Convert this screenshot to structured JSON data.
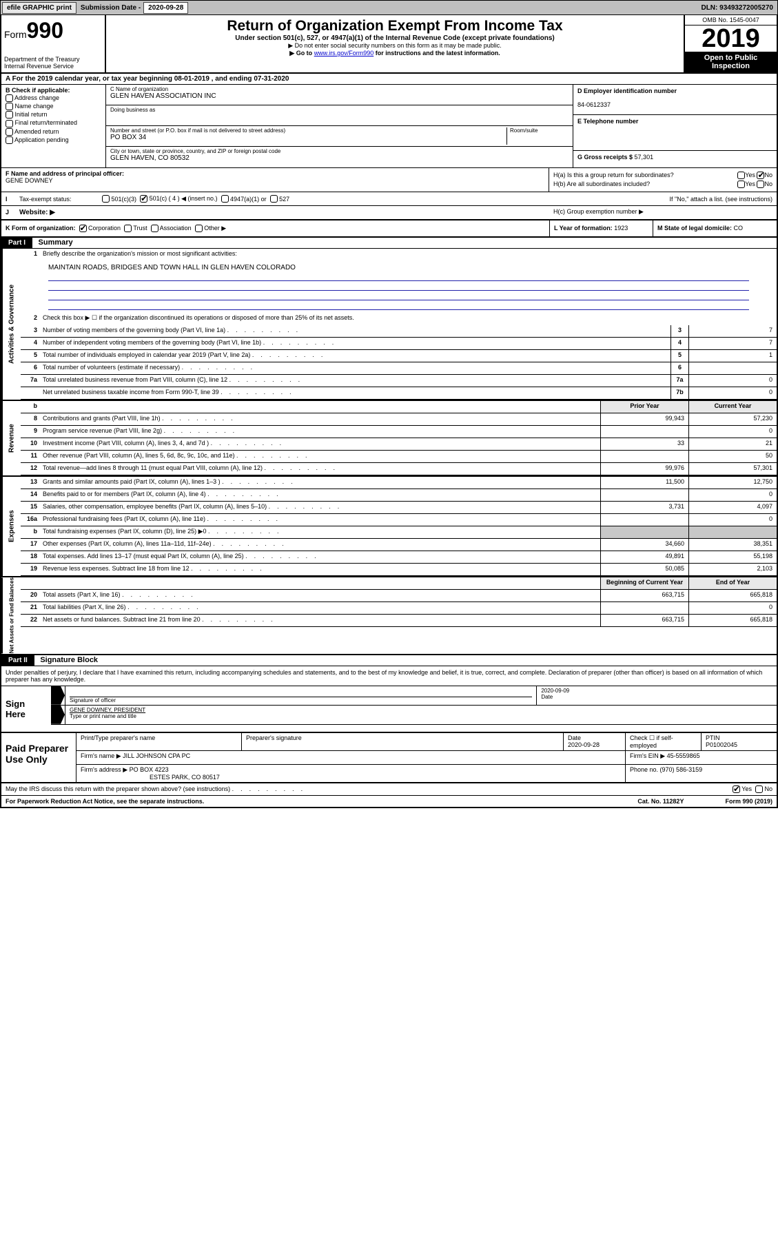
{
  "topbar": {
    "efile": "efile GRAPHIC print",
    "sub_label": "Submission Date - ",
    "sub_date": "2020-09-28",
    "dln": "DLN: 93493272005270"
  },
  "header": {
    "form_prefix": "Form",
    "form_num": "990",
    "dept": "Department of the Treasury\nInternal Revenue Service",
    "title": "Return of Organization Exempt From Income Tax",
    "line1": "Under section 501(c), 527, or 4947(a)(1) of the Internal Revenue Code (except private foundations)",
    "line2": "▶ Do not enter social security numbers on this form as it may be made public.",
    "line3_pre": "▶ Go to ",
    "line3_link": "www.irs.gov/Form990",
    "line3_post": " for instructions and the latest information.",
    "omb": "OMB No. 1545-0047",
    "year": "2019",
    "open": "Open to Public Inspection"
  },
  "period": "A For the 2019 calendar year, or tax year beginning 08-01-2019    , and ending 07-31-2020",
  "boxB": {
    "label": "B Check if applicable:",
    "opts": [
      "Address change",
      "Name change",
      "Initial return",
      "Final return/terminated",
      "Amended return",
      "Application pending"
    ]
  },
  "boxC": {
    "name_lbl": "C Name of organization",
    "name": "GLEN HAVEN ASSOCIATION INC",
    "dba_lbl": "Doing business as",
    "addr_lbl": "Number and street (or P.O. box if mail is not delivered to street address)",
    "room_lbl": "Room/suite",
    "addr": "PO BOX 34",
    "city_lbl": "City or town, state or province, country, and ZIP or foreign postal code",
    "city": "GLEN HAVEN, CO  80532"
  },
  "boxD": {
    "lbl": "D Employer identification number",
    "val": "84-0612337"
  },
  "boxE": {
    "lbl": "E Telephone number"
  },
  "boxG": {
    "lbl": "G Gross receipts $ ",
    "val": "57,301"
  },
  "boxF": {
    "lbl": "F  Name and address of principal officer:",
    "val": "GENE DOWNEY"
  },
  "boxH": {
    "a": "H(a)  Is this a group return for subordinates?",
    "b": "H(b)  Are all subordinates included?",
    "b2": "If \"No,\" attach a list. (see instructions)",
    "c": "H(c)  Group exemption number ▶"
  },
  "taxrow": {
    "i": "I",
    "lbl": "Tax-exempt status:",
    "o1": "501(c)(3)",
    "o2": "501(c) ( 4 ) ◀ (insert no.)",
    "o3": "4947(a)(1) or",
    "o4": "527"
  },
  "webrow": {
    "j": "J",
    "lbl": "Website: ▶"
  },
  "klm": {
    "k": "K Form of organization:",
    "k_opts": [
      "Corporation",
      "Trust",
      "Association",
      "Other ▶"
    ],
    "l": "L Year of formation: ",
    "l_val": "1923",
    "m": "M State of legal domicile: ",
    "m_val": "CO"
  },
  "part1": {
    "tag": "Part I",
    "title": "Summary"
  },
  "summary": {
    "l1": "Briefly describe the organization's mission or most significant activities:",
    "mission": "MAINTAIN ROADS, BRIDGES AND TOWN HALL IN GLEN HAVEN COLORADO",
    "l2": "Check this box ▶ ☐  if the organization discontinued its operations or disposed of more than 25% of its net assets.",
    "rows_a": [
      {
        "n": "3",
        "d": "Number of voting members of the governing body (Part VI, line 1a)",
        "box": "3",
        "v": "7"
      },
      {
        "n": "4",
        "d": "Number of independent voting members of the governing body (Part VI, line 1b)",
        "box": "4",
        "v": "7"
      },
      {
        "n": "5",
        "d": "Total number of individuals employed in calendar year 2019 (Part V, line 2a)",
        "box": "5",
        "v": "1"
      },
      {
        "n": "6",
        "d": "Total number of volunteers (estimate if necessary)",
        "box": "6",
        "v": ""
      },
      {
        "n": "7a",
        "d": "Total unrelated business revenue from Part VIII, column (C), line 12",
        "box": "7a",
        "v": "0"
      },
      {
        "n": "",
        "d": "Net unrelated business taxable income from Form 990-T, line 39",
        "box": "7b",
        "v": "0"
      }
    ],
    "hdr_b": "b",
    "hdr_prior": "Prior Year",
    "hdr_curr": "Current Year",
    "rows_rev": [
      {
        "n": "8",
        "d": "Contributions and grants (Part VIII, line 1h)",
        "p": "99,943",
        "c": "57,230"
      },
      {
        "n": "9",
        "d": "Program service revenue (Part VIII, line 2g)",
        "p": "",
        "c": "0"
      },
      {
        "n": "10",
        "d": "Investment income (Part VIII, column (A), lines 3, 4, and 7d )",
        "p": "33",
        "c": "21"
      },
      {
        "n": "11",
        "d": "Other revenue (Part VIII, column (A), lines 5, 6d, 8c, 9c, 10c, and 11e)",
        "p": "",
        "c": "50"
      },
      {
        "n": "12",
        "d": "Total revenue—add lines 8 through 11 (must equal Part VIII, column (A), line 12)",
        "p": "99,976",
        "c": "57,301"
      }
    ],
    "rows_exp": [
      {
        "n": "13",
        "d": "Grants and similar amounts paid (Part IX, column (A), lines 1–3 )",
        "p": "11,500",
        "c": "12,750"
      },
      {
        "n": "14",
        "d": "Benefits paid to or for members (Part IX, column (A), line 4)",
        "p": "",
        "c": "0"
      },
      {
        "n": "15",
        "d": "Salaries, other compensation, employee benefits (Part IX, column (A), lines 5–10)",
        "p": "3,731",
        "c": "4,097"
      },
      {
        "n": "16a",
        "d": "Professional fundraising fees (Part IX, column (A), line 11e)",
        "p": "",
        "c": "0"
      },
      {
        "n": "b",
        "d": "Total fundraising expenses (Part IX, column (D), line 25) ▶0",
        "p": "shade",
        "c": "shade"
      },
      {
        "n": "17",
        "d": "Other expenses (Part IX, column (A), lines 11a–11d, 11f–24e)",
        "p": "34,660",
        "c": "38,351"
      },
      {
        "n": "18",
        "d": "Total expenses. Add lines 13–17 (must equal Part IX, column (A), line 25)",
        "p": "49,891",
        "c": "55,198"
      },
      {
        "n": "19",
        "d": "Revenue less expenses. Subtract line 18 from line 12",
        "p": "50,085",
        "c": "2,103"
      }
    ],
    "hdr_beg": "Beginning of Current Year",
    "hdr_end": "End of Year",
    "rows_net": [
      {
        "n": "20",
        "d": "Total assets (Part X, line 16)",
        "p": "663,715",
        "c": "665,818"
      },
      {
        "n": "21",
        "d": "Total liabilities (Part X, line 26)",
        "p": "",
        "c": "0"
      },
      {
        "n": "22",
        "d": "Net assets or fund balances. Subtract line 21 from line 20",
        "p": "663,715",
        "c": "665,818"
      }
    ],
    "side_gov": "Activities & Governance",
    "side_rev": "Revenue",
    "side_exp": "Expenses",
    "side_net": "Net Assets or Fund Balances"
  },
  "part2": {
    "tag": "Part II",
    "title": "Signature Block"
  },
  "sig": {
    "decl": "Under penalties of perjury, I declare that I have examined this return, including accompanying schedules and statements, and to the best of my knowledge and belief, it is true, correct, and complete. Declaration of preparer (other than officer) is based on all information of which preparer has any knowledge.",
    "sign_here": "Sign Here",
    "sig_officer": "Signature of officer",
    "date1": "2020-09-09",
    "date_lbl": "Date",
    "name_title": "GENE DOWNEY, PRESIDENT",
    "type_lbl": "Type or print name and title"
  },
  "paid": {
    "lbl": "Paid Preparer Use Only",
    "h1": "Print/Type preparer's name",
    "h2": "Preparer's signature",
    "h3": "Date",
    "date": "2020-09-28",
    "h4": "Check ☐ if self-employed",
    "h5": "PTIN",
    "ptin": "P01002045",
    "firm_lbl": "Firm's name    ▶ ",
    "firm": "JILL JOHNSON CPA PC",
    "ein_lbl": "Firm's EIN ▶ ",
    "ein": "45-5559865",
    "addr_lbl": "Firm's address ▶ ",
    "addr": "PO BOX 4223",
    "addr2": "ESTES PARK, CO  80517",
    "phone_lbl": "Phone no. ",
    "phone": "(970) 586-3159"
  },
  "discuss": "May the IRS discuss this return with the preparer shown above? (see instructions)",
  "footer": {
    "left": "For Paperwork Reduction Act Notice, see the separate instructions.",
    "mid": "Cat. No. 11282Y",
    "right": "Form 990 (2019)"
  }
}
